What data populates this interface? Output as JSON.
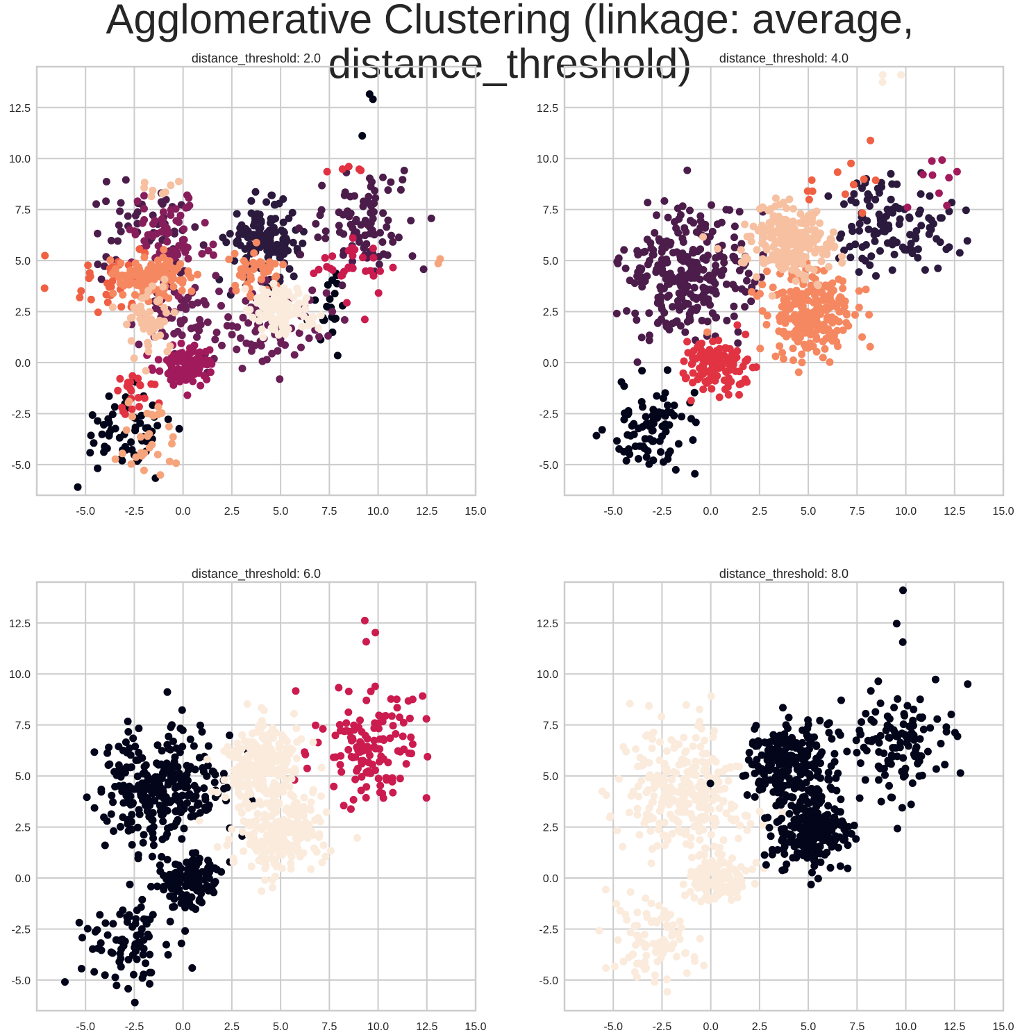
{
  "figure": {
    "title": "Agglomerative Clustering (linkage: average, distance_threshold)"
  },
  "chart_data": [
    {
      "type": "scatter",
      "title": "distance_threshold: 2.0",
      "xlim": [
        -7.5,
        15.0
      ],
      "ylim": [
        -6.5,
        14.5
      ],
      "xticks": [
        "-5.0",
        "-2.5",
        "0.0",
        "2.5",
        "5.0",
        "7.5",
        "10.0",
        "12.5",
        "15.0"
      ],
      "yticks": [
        "-5.0",
        "-2.5",
        "0.0",
        "2.5",
        "5.0",
        "7.5",
        "10.0",
        "12.5"
      ],
      "grid": true,
      "clusters": [
        {
          "color": "#03051a",
          "cx": -3.0,
          "cy": -3.4,
          "sx": 1.2,
          "sy": 1.0,
          "n": 60
        },
        {
          "color": "#03051a",
          "cx": 7.6,
          "cy": 3.0,
          "sx": 0.6,
          "sy": 1.0,
          "n": 22
        },
        {
          "color": "#03051a",
          "cx": 9.6,
          "cy": 12.0,
          "sx": 0.3,
          "sy": 0.9,
          "n": 3
        },
        {
          "color": "#2b1a3d",
          "cx": 4.2,
          "cy": 5.9,
          "sx": 0.9,
          "sy": 0.9,
          "n": 150
        },
        {
          "color": "#4c1d4b",
          "cx": -2.0,
          "cy": 6.3,
          "sx": 1.4,
          "sy": 1.2,
          "n": 55
        },
        {
          "color": "#4c1d4b",
          "cx": 9.5,
          "cy": 6.9,
          "sx": 1.5,
          "sy": 1.2,
          "n": 90
        },
        {
          "color": "#6a1f56",
          "cx": 4.2,
          "cy": 1.8,
          "sx": 1.6,
          "sy": 1.0,
          "n": 80
        },
        {
          "color": "#6a1f56",
          "cx": -0.5,
          "cy": 2.6,
          "sx": 1.0,
          "sy": 1.0,
          "n": 55
        },
        {
          "color": "#871e5c",
          "cx": -0.8,
          "cy": 6.2,
          "sx": 1.1,
          "sy": 1.0,
          "n": 70
        },
        {
          "color": "#a11a5b",
          "cx": 0.2,
          "cy": -0.1,
          "sx": 0.7,
          "sy": 0.5,
          "n": 110
        },
        {
          "color": "#cb1b4f",
          "cx": 9.0,
          "cy": 4.8,
          "sx": 1.2,
          "sy": 0.8,
          "n": 30
        },
        {
          "color": "#e13342",
          "cx": -2.4,
          "cy": -1.4,
          "sx": 0.6,
          "sy": 0.6,
          "n": 22
        },
        {
          "color": "#e13342",
          "cx": 8.5,
          "cy": 9.5,
          "sx": 0.5,
          "sy": 0.1,
          "n": 5
        },
        {
          "color": "#f06043",
          "cx": -3.5,
          "cy": 4.0,
          "sx": 1.2,
          "sy": 0.8,
          "n": 32
        },
        {
          "color": "#f58860",
          "cx": -1.5,
          "cy": 4.2,
          "sx": 0.9,
          "sy": 0.5,
          "n": 120
        },
        {
          "color": "#f58860",
          "cx": 3.8,
          "cy": 4.4,
          "sx": 0.7,
          "sy": 0.6,
          "n": 40
        },
        {
          "color": "#f6a47c",
          "cx": -1.7,
          "cy": -3.8,
          "sx": 0.8,
          "sy": 1.0,
          "n": 30
        },
        {
          "color": "#f6a47c",
          "cx": 13.2,
          "cy": 5.1,
          "sx": 0.4,
          "sy": 0.1,
          "n": 2
        },
        {
          "color": "#f6c0a1",
          "cx": -1.7,
          "cy": 2.0,
          "sx": 0.7,
          "sy": 0.8,
          "n": 50
        },
        {
          "color": "#f6c0a1",
          "cx": -1.0,
          "cy": 8.4,
          "sx": 0.8,
          "sy": 0.2,
          "n": 8
        },
        {
          "color": "#faebdd",
          "cx": 5.0,
          "cy": 2.6,
          "sx": 0.8,
          "sy": 0.6,
          "n": 120
        }
      ]
    },
    {
      "type": "scatter",
      "title": "distance_threshold: 4.0",
      "xlim": [
        -7.5,
        15.0
      ],
      "ylim": [
        -6.5,
        14.5
      ],
      "xticks": [
        "-5.0",
        "-2.5",
        "0.0",
        "2.5",
        "5.0",
        "7.5",
        "10.0",
        "12.5",
        "15.0"
      ],
      "yticks": [
        "-5.0",
        "-2.5",
        "0.0",
        "2.5",
        "5.0",
        "7.5",
        "10.0",
        "12.5"
      ],
      "grid": true,
      "clusters": [
        {
          "color": "#03051a",
          "cx": -3.0,
          "cy": -3.3,
          "sx": 1.2,
          "sy": 1.1,
          "n": 85
        },
        {
          "color": "#2b1a3d",
          "cx": 9.5,
          "cy": 6.6,
          "sx": 1.5,
          "sy": 1.3,
          "n": 120
        },
        {
          "color": "#4c1d4b",
          "cx": -1.2,
          "cy": 4.3,
          "sx": 1.6,
          "sy": 1.6,
          "n": 290
        },
        {
          "color": "#a11a5b",
          "cx": 11.8,
          "cy": 9.0,
          "sx": 0.6,
          "sy": 0.7,
          "n": 9
        },
        {
          "color": "#e13342",
          "cx": 0.3,
          "cy": -0.1,
          "sx": 0.8,
          "sy": 0.6,
          "n": 120
        },
        {
          "color": "#f06043",
          "cx": 6.5,
          "cy": 8.8,
          "sx": 1.4,
          "sy": 0.7,
          "n": 12
        },
        {
          "color": "#f58860",
          "cx": 5.1,
          "cy": 2.4,
          "sx": 1.2,
          "sy": 1.0,
          "n": 230
        },
        {
          "color": "#f6c0a1",
          "cx": 4.0,
          "cy": 5.8,
          "sx": 1.1,
          "sy": 0.9,
          "n": 230
        },
        {
          "color": "#faebdd",
          "cx": 9.5,
          "cy": 12.3,
          "sx": 0.3,
          "sy": 0.9,
          "n": 3
        }
      ]
    },
    {
      "type": "scatter",
      "title": "distance_threshold: 6.0",
      "xlim": [
        -7.5,
        15.0
      ],
      "ylim": [
        -6.5,
        14.5
      ],
      "xticks": [
        "-5.0",
        "-2.5",
        "0.0",
        "2.5",
        "5.0",
        "7.5",
        "10.0",
        "12.5",
        "15.0"
      ],
      "yticks": [
        "-5.0",
        "-2.5",
        "0.0",
        "2.5",
        "5.0",
        "7.5",
        "10.0",
        "12.5"
      ],
      "grid": true,
      "clusters": [
        {
          "color": "#03051a",
          "cx": -3.0,
          "cy": -3.3,
          "sx": 1.2,
          "sy": 1.1,
          "n": 85
        },
        {
          "color": "#03051a",
          "cx": -1.2,
          "cy": 4.3,
          "sx": 1.6,
          "sy": 1.6,
          "n": 290
        },
        {
          "color": "#03051a",
          "cx": 0.3,
          "cy": -0.1,
          "sx": 0.8,
          "sy": 0.6,
          "n": 120
        },
        {
          "color": "#cb1b4f",
          "cx": 9.5,
          "cy": 6.6,
          "sx": 1.5,
          "sy": 1.3,
          "n": 130
        },
        {
          "color": "#cb1b4f",
          "cx": 9.7,
          "cy": 12.5,
          "sx": 0.3,
          "sy": 0.9,
          "n": 3
        },
        {
          "color": "#faebdd",
          "cx": 4.1,
          "cy": 5.6,
          "sx": 1.1,
          "sy": 1.0,
          "n": 230
        },
        {
          "color": "#faebdd",
          "cx": 4.9,
          "cy": 2.2,
          "sx": 1.2,
          "sy": 1.1,
          "n": 230
        }
      ]
    },
    {
      "type": "scatter",
      "title": "distance_threshold: 8.0",
      "xlim": [
        -7.5,
        15.0
      ],
      "ylim": [
        -6.5,
        14.5
      ],
      "xticks": [
        "-5.0",
        "-2.5",
        "0.0",
        "2.5",
        "5.0",
        "7.5",
        "10.0",
        "12.5",
        "15.0"
      ],
      "yticks": [
        "-5.0",
        "-2.5",
        "0.0",
        "2.5",
        "5.0",
        "7.5",
        "10.0",
        "12.5"
      ],
      "grid": true,
      "clusters": [
        {
          "color": "#faebdd",
          "cx": -3.0,
          "cy": -3.3,
          "sx": 1.2,
          "sy": 1.1,
          "n": 85
        },
        {
          "color": "#faebdd",
          "cx": -1.2,
          "cy": 4.3,
          "sx": 1.6,
          "sy": 1.6,
          "n": 290
        },
        {
          "color": "#faebdd",
          "cx": 0.3,
          "cy": -0.1,
          "sx": 0.8,
          "sy": 0.6,
          "n": 120
        },
        {
          "color": "#03051a",
          "cx": 4.1,
          "cy": 5.6,
          "sx": 1.1,
          "sy": 1.0,
          "n": 230
        },
        {
          "color": "#03051a",
          "cx": 5.1,
          "cy": 2.4,
          "sx": 1.0,
          "sy": 1.0,
          "n": 230
        },
        {
          "color": "#03051a",
          "cx": 9.5,
          "cy": 6.6,
          "sx": 1.5,
          "sy": 1.3,
          "n": 130
        },
        {
          "color": "#03051a",
          "cx": 9.7,
          "cy": 12.5,
          "sx": 0.3,
          "sy": 0.9,
          "n": 3
        }
      ]
    }
  ]
}
